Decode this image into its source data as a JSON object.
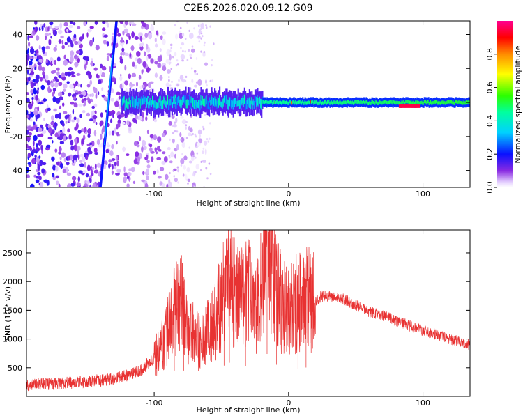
{
  "title": "C2E6.2026.020.09.12.G09",
  "chart_data": [
    {
      "type": "heatmap",
      "title": "",
      "xlabel": "Height of straight line (km)",
      "ylabel": "Frequency (Hz)",
      "xlim": [
        -195,
        135
      ],
      "ylim": [
        -50,
        48
      ],
      "x_ticks": [
        -100,
        0,
        100
      ],
      "y_ticks": [
        -40,
        -20,
        0,
        20,
        40
      ],
      "colorbar": {
        "label": "Normalized spectral amplitude",
        "range": [
          0,
          1
        ],
        "ticks": [
          0.0,
          0.2,
          0.4,
          0.6,
          0.8
        ],
        "tick_labels": [
          "0.0",
          "0.2",
          "0.4",
          "0.6",
          "0.8"
        ]
      },
      "features": {
        "diagonal_streak": {
          "x_start": -140,
          "y_start": -50,
          "x_end": -128,
          "y_end": 48
        },
        "central_band": {
          "x_start": -125,
          "x_end": 135,
          "center_hz": 0,
          "halfwidth_hz": 3
        },
        "peak_segment": {
          "x_start": 82,
          "x_end": 98,
          "center_hz": -2,
          "amplitude": 0.95
        },
        "noise_region": {
          "x_start": -195,
          "x_end": -60
        }
      }
    },
    {
      "type": "line",
      "title": "",
      "xlabel": "Height of straight line (km)",
      "ylabel": "SNR (10 * v/v)",
      "xlim": [
        -195,
        135
      ],
      "ylim": [
        0,
        2900
      ],
      "x_ticks": [
        -100,
        0,
        100
      ],
      "y_ticks": [
        500,
        1000,
        1500,
        2000,
        2500
      ],
      "series": [
        {
          "name": "SNR",
          "color": "#e83232",
          "envelope": {
            "x": [
              -195,
              -160,
              -130,
              -110,
              -95,
              -85,
              -80,
              -75,
              -65,
              -55,
              -45,
              -38,
              -30,
              -25,
              -18,
              -15,
              -10,
              -5,
              0,
              5,
              10,
              15,
              20,
              25,
              30,
              40,
              50,
              60,
              70,
              80,
              90,
              100,
              110,
              120,
              135
            ],
            "y": [
              200,
              240,
              300,
              450,
              800,
              1500,
              1700,
              1200,
              900,
              1300,
              2000,
              1700,
              1800,
              1500,
              2200,
              2600,
              1900,
              1600,
              1500,
              1600,
              1650,
              1700,
              1650,
              1750,
              1750,
              1700,
              1600,
              1480,
              1400,
              1320,
              1230,
              1150,
              1080,
              1000,
              900
            ]
          },
          "spikes": [
            {
              "x": -85,
              "y": 2150
            },
            {
              "x": -78,
              "y": 2000
            },
            {
              "x": -48,
              "y": 2250
            },
            {
              "x": -44,
              "y": 2300
            },
            {
              "x": -32,
              "y": 2100
            },
            {
              "x": -16,
              "y": 2880
            },
            {
              "x": -9,
              "y": 2200
            },
            {
              "x": 7,
              "y": 2260
            },
            {
              "x": 13,
              "y": 2050
            }
          ]
        }
      ]
    }
  ]
}
